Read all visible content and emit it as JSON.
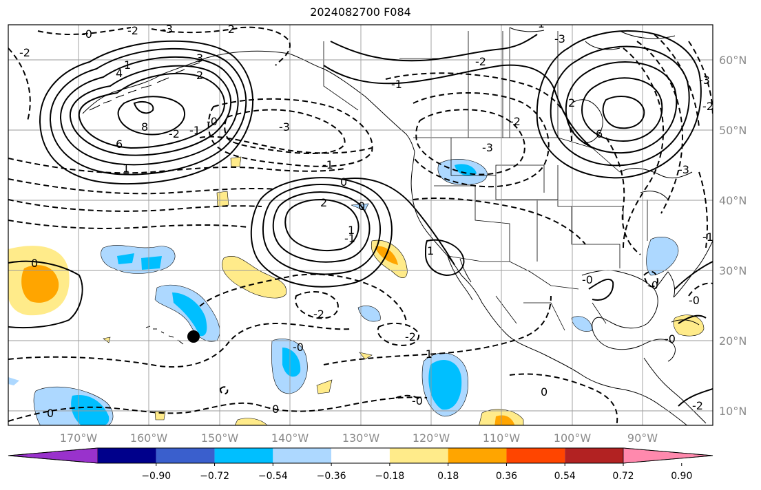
{
  "title": "2024082700 F084",
  "map": {
    "lat_labels": [
      "60°N",
      "50°N",
      "40°N",
      "30°N",
      "20°N",
      "10°N"
    ],
    "lon_labels": [
      "170°W",
      "160°W",
      "150°W",
      "140°W",
      "130°W",
      "120°W",
      "110°W",
      "100°W",
      "90°W"
    ],
    "contour_labels": [
      "-2",
      "-2",
      "-2",
      "-3",
      "-2",
      "-1",
      "-2",
      "-3",
      "-3",
      "-2",
      "-1",
      "0",
      "2",
      "1",
      "-1",
      "0",
      "0",
      "-2",
      "-2",
      "-1",
      "-0",
      "-0",
      "0",
      "4",
      "6",
      "8",
      "6",
      "1",
      "-3",
      "-3",
      "3",
      "2",
      "1",
      "-2",
      "-3",
      "-1",
      "-1",
      "0",
      "2",
      "1",
      "-0",
      "-0",
      "0",
      "-0",
      "-0",
      "-0",
      "-0",
      "-1",
      "-2"
    ],
    "marker": "black-dot"
  },
  "colorbar": {
    "tick_labels": [
      "−0.90",
      "−0.72",
      "−0.54",
      "−0.36",
      "−0.18",
      "0.18",
      "0.36",
      "0.54",
      "0.72",
      "0.90"
    ],
    "colors": [
      "#9932cc",
      "#00008b",
      "#3a5fcd",
      "#00bfff",
      "#add8ff",
      "#ffffff",
      "#ffeb8a",
      "#ffa500",
      "#ff4500",
      "#b22222",
      "#ff89ad"
    ]
  }
}
